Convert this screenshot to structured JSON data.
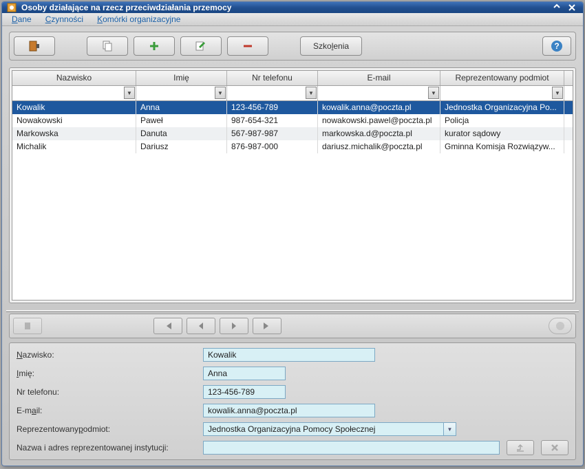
{
  "window": {
    "title": "Osoby działające na rzecz przeciwdziałania przemocy"
  },
  "menubar": {
    "items": [
      {
        "label": "Dane",
        "u": "D",
        "rest": "ane"
      },
      {
        "label": "Czynności",
        "u": "C",
        "rest": "zynności"
      },
      {
        "label": "Komórki organizacyjne",
        "u": "K",
        "rest": "omórki organizacyjne"
      }
    ]
  },
  "toolbar": {
    "szkolenia_pre": "Szko",
    "szkolenia_u": "l",
    "szkolenia_post": "enia"
  },
  "grid": {
    "columns": [
      "Nazwisko",
      "Imię",
      "Nr telefonu",
      "E-mail",
      "Reprezentowany podmiot"
    ],
    "rows": [
      {
        "nazwisko": "Kowalik",
        "imie": "Anna",
        "nr": "123-456-789",
        "email": "kowalik.anna@poczta.pl",
        "podmiot": "Jednostka Organizacyjna Po..."
      },
      {
        "nazwisko": "Nowakowski",
        "imie": "Paweł",
        "nr": "987-654-321",
        "email": "nowakowski.pawel@poczta.pl",
        "podmiot": "Policja"
      },
      {
        "nazwisko": "Markowska",
        "imie": "Danuta",
        "nr": "567-987-987",
        "email": "markowska.d@poczta.pl",
        "podmiot": "kurator sądowy"
      },
      {
        "nazwisko": "Michalik",
        "imie": "Dariusz",
        "nr": "876-987-000",
        "email": "dariusz.michalik@poczta.pl",
        "podmiot": "Gminna Komisja Rozwiązyw..."
      }
    ],
    "selected_index": 0
  },
  "form": {
    "labels": {
      "nazwisko_u": "N",
      "nazwisko_rest": "azwisko:",
      "imie_u": "I",
      "imie_rest": "mię:",
      "nr": "Nr telefonu:",
      "email_pre": "E-m",
      "email_u": "a",
      "email_post": "il:",
      "podmiot_pre": "Reprezentowany ",
      "podmiot_u": "p",
      "podmiot_post": "odmiot:",
      "instytucja": "Nazwa i adres reprezentowanej instytucji:"
    },
    "values": {
      "nazwisko": "Kowalik",
      "imie": "Anna",
      "nr": "123-456-789",
      "email": "kowalik.anna@poczta.pl",
      "podmiot": "Jednostka Organizacyjna Pomocy Społecznej",
      "instytucja": ""
    }
  },
  "colors": {
    "titlebar_top": "#3d72b8",
    "titlebar_bottom": "#1a4682",
    "selected_row": "#1e589e",
    "input_bg": "#d8f0f5"
  }
}
